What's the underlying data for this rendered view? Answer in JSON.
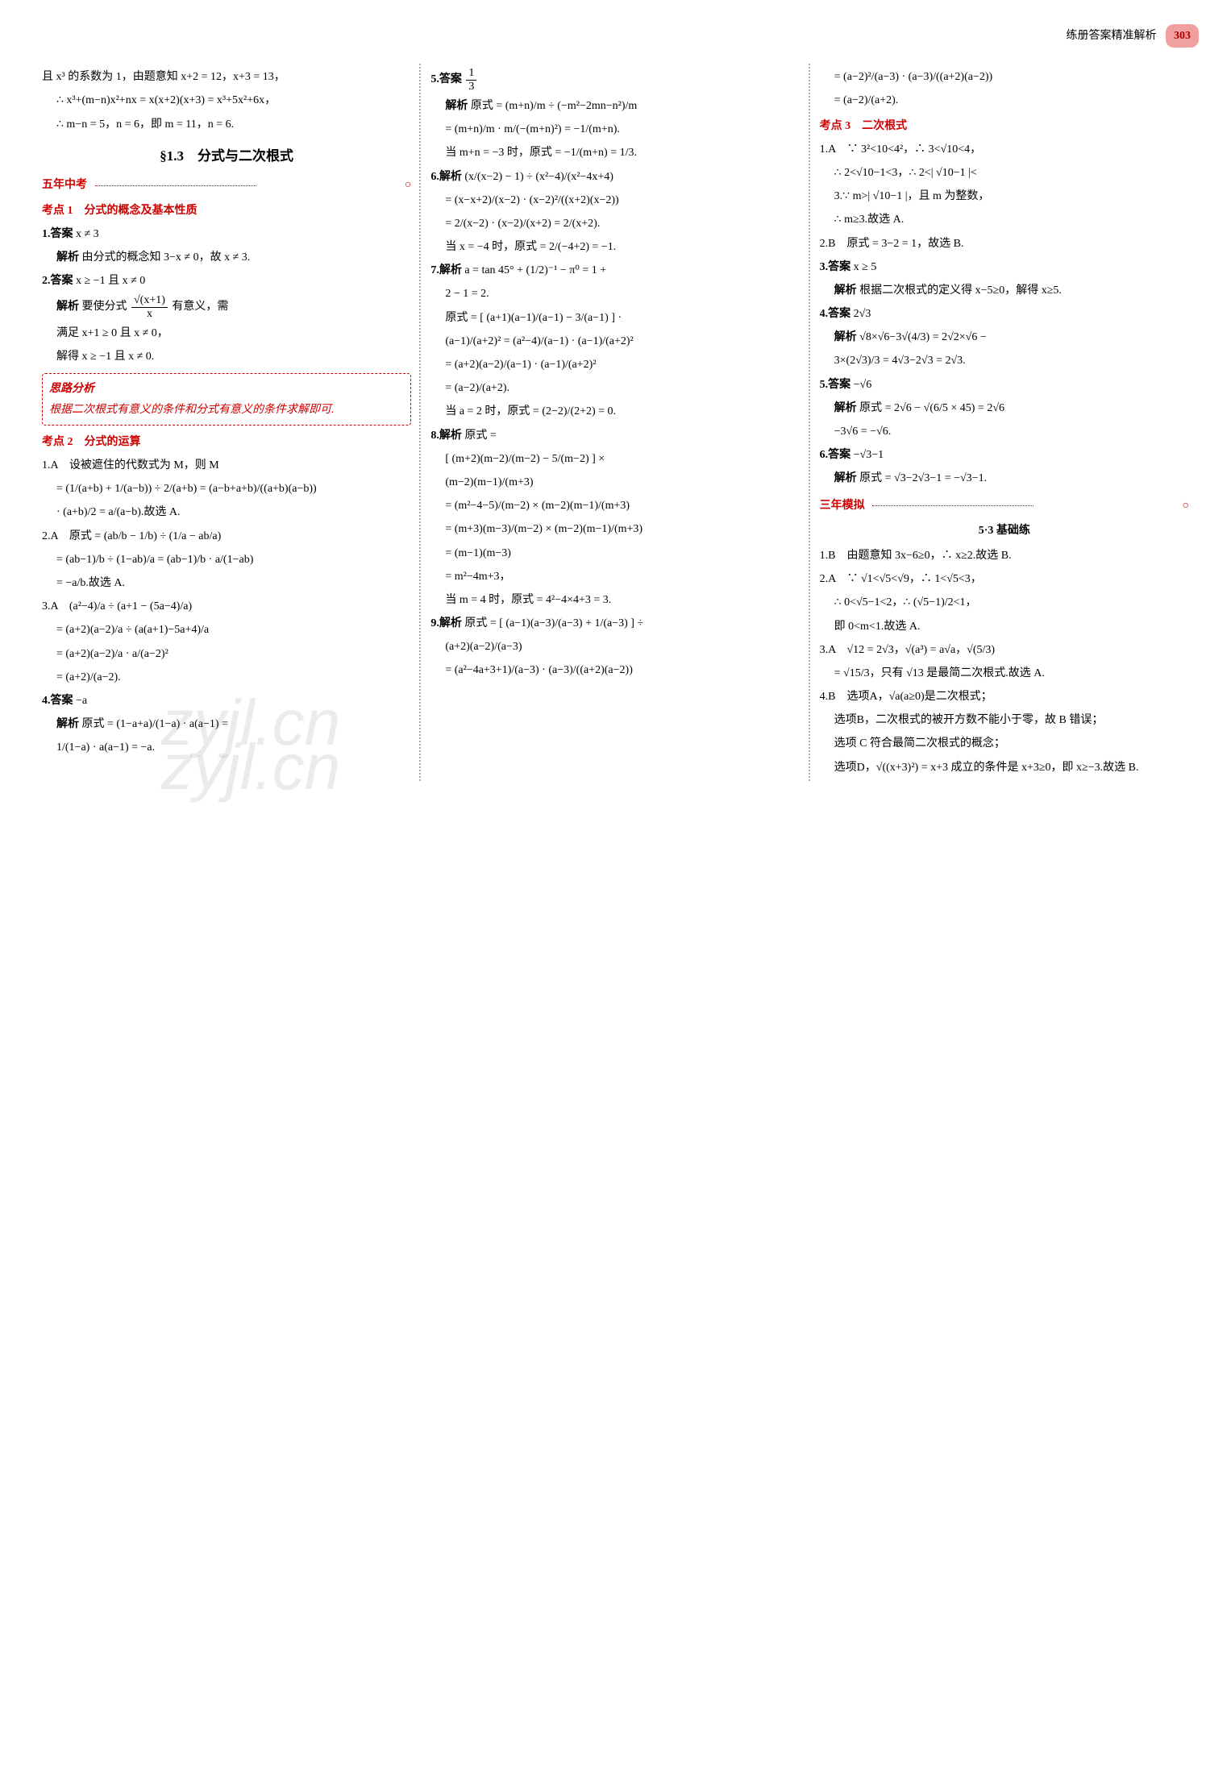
{
  "header": {
    "title": "练册答案精准解析",
    "page_number": "303"
  },
  "watermarks": [
    "zyjl.cn",
    "zyjl.cn"
  ],
  "col1": {
    "pre_lines": [
      "且 x³ 的系数为 1，由题意知 x+2 = 12，x+3 = 13，",
      "∴ x³+(m−n)x²+nx = x(x+2)(x+3) = x³+5x²+6x，",
      "∴ m−n = 5，n = 6，即 m = 11，n = 6."
    ],
    "section_title": "§1.3　分式与二次根式",
    "five_years": "五年中考",
    "kd1_title": "考点 1　分式的概念及基本性质",
    "q1_label": "1.答案",
    "q1_ans": "x ≠ 3",
    "q1_jiexi_label": "解析",
    "q1_jiexi": "由分式的概念知 3−x ≠ 0，故 x ≠ 3.",
    "q2_label": "2.答案",
    "q2_ans": "x ≥ −1 且 x ≠ 0",
    "q2_jiexi_label": "解析",
    "q2_txt1": "要使分式",
    "q2_fracnum": "√(x+1)",
    "q2_fracden": "x",
    "q2_txt2": "有意义，需",
    "q2_line2": "满足 x+1 ≥ 0 且 x ≠ 0，",
    "q2_line3": "解得 x ≥ −1 且 x ≠ 0.",
    "tip_title": "思路分析",
    "tip_body": "根据二次根式有意义的条件和分式有意义的条件求解即可.",
    "kd2_title": "考点 2　分式的运算",
    "kd2_1": "1.A　设被遮住的代数式为 M，则 M",
    "kd2_1b": "= (1/(a+b) + 1/(a−b)) ÷ 2/(a+b) = (a−b+a+b)/((a+b)(a−b))",
    "kd2_1c": "· (a+b)/2 = a/(a−b).故选 A.",
    "kd2_2": "2.A　原式 = (ab/b − 1/b) ÷ (1/a − ab/a)",
    "kd2_2b": "= (ab−1)/b ÷ (1−ab)/a = (ab−1)/b · a/(1−ab)",
    "kd2_2c": "= −a/b.故选 A.",
    "kd2_3": "3.A　(a²−4)/a ÷ (a+1 − (5a−4)/a)",
    "kd2_3b": "= (a+2)(a−2)/a ÷ (a(a+1)−5a+4)/a",
    "kd2_3c": "= (a+2)(a−2)/a · a/(a−2)²",
    "kd2_3d": "= (a+2)/(a−2).",
    "kd2_4_label": "4.答案",
    "kd2_4_ans": "−a",
    "kd2_4_jiexi_label": "解析",
    "kd2_4_jiexi": "原式 = (1−a+a)/(1−a) · a(a−1) =",
    "kd2_4_jiexi2": "1/(1−a) · a(a−1) = −a."
  },
  "col2": {
    "q5_label": "5.答案",
    "q5_ans_num": "1",
    "q5_ans_den": "3",
    "q5_jiexi_label": "解析",
    "q5_l1": "原式 = (m+n)/m ÷ (−m²−2mn−n²)/m",
    "q5_l2": "= (m+n)/m · m/(−(m+n)²) = −1/(m+n).",
    "q5_l3": "当 m+n = −3 时，原式 = −1/(m+n) = 1/3.",
    "q6_label": "6.解析",
    "q6_l1": "(x/(x−2) − 1) ÷ (x²−4)/(x²−4x+4)",
    "q6_l2": "= (x−x+2)/(x−2) · (x−2)²/((x+2)(x−2))",
    "q6_l3": "= 2/(x−2) · (x−2)/(x+2) = 2/(x+2).",
    "q6_l4": "当 x = −4 时，原式 = 2/(−4+2) = −1.",
    "q7_label": "7.解析",
    "q7_l1": "a = tan 45° + (1/2)⁻¹ − π⁰ = 1 +",
    "q7_l2": "2 − 1 = 2.",
    "q7_l3": "原式 = [ (a+1)(a−1)/(a−1) − 3/(a−1) ] ·",
    "q7_l4": "(a−1)/(a+2)² = (a²−4)/(a−1) · (a−1)/(a+2)²",
    "q7_l5": "= (a+2)(a−2)/(a−1) · (a−1)/(a+2)²",
    "q7_l6": "= (a−2)/(a+2).",
    "q7_l7": "当 a = 2 时，原式 = (2−2)/(2+2) = 0.",
    "q8_label": "8.解析",
    "q8_l1": "原式 =",
    "q8_l2": "[ (m+2)(m−2)/(m−2) − 5/(m−2) ] ×",
    "q8_l3": "(m−2)(m−1)/(m+3)",
    "q8_l4": "= (m²−4−5)/(m−2) × (m−2)(m−1)/(m+3)",
    "q8_l5": "= (m+3)(m−3)/(m−2) × (m−2)(m−1)/(m+3)",
    "q8_l6": "= (m−1)(m−3)",
    "q8_l7": "= m²−4m+3，",
    "q8_l8": "当 m = 4 时，原式 = 4²−4×4+3 = 3.",
    "q9_label": "9.解析",
    "q9_l1": "原式 = [ (a−1)(a−3)/(a−3) + 1/(a−3) ] ÷",
    "q9_l2": "(a+2)(a−2)/(a−3)",
    "q9_l3": "= (a²−4a+3+1)/(a−3) · (a−3)/((a+2)(a−2))"
  },
  "col3": {
    "cont_l1": "= (a−2)²/(a−3) · (a−3)/((a+2)(a−2))",
    "cont_l2": "= (a−2)/(a+2).",
    "kd3_title": "考点 3　二次根式",
    "q1": "1.A　∵ 3²<10<4²，∴ 3<√10<4，",
    "q1b": "∴ 2<√10−1<3，∴ 2<| √10−1 |<",
    "q1c": "3.∵ m>| √10−1 |，且 m 为整数，",
    "q1d": "∴ m≥3.故选 A.",
    "q2": "2.B　原式 = 3−2 = 1，故选 B.",
    "q3_label": "3.答案",
    "q3_ans": "x ≥ 5",
    "q3_jiexi_label": "解析",
    "q3_jiexi": "根据二次根式的定义得 x−5≥0，解得 x≥5.",
    "q4_label": "4.答案",
    "q4_ans": "2√3",
    "q4_jiexi_label": "解析",
    "q4_jiexi": "√8×√6−3√(4/3) = 2√2×√6 −",
    "q4_jiexi2": "3×(2√3)/3 = 4√3−2√3 = 2√3.",
    "q5_label": "5.答案",
    "q5_ans": "−√6",
    "q5_jiexi_label": "解析",
    "q5_jiexi": "原式 = 2√6 − √(6/5 × 45) = 2√6",
    "q5_jiexi2": "−3√6 = −√6.",
    "q6_label": "6.答案",
    "q6_ans": "−√3−1",
    "q6_jiexi_label": "解析",
    "q6_jiexi": "原式 = √3−2√3−1 = −√3−1.",
    "three_years": "三年模拟",
    "subhead": "5·3 基础练",
    "sq1": "1.B　由题意知 3x−6≥0，∴ x≥2.故选 B.",
    "sq2": "2.A　∵ √1<√5<√9，∴ 1<√5<3，",
    "sq2b": "∴ 0<√5−1<2，∴ (√5−1)/2<1，",
    "sq2c": "即 0<m<1.故选 A.",
    "sq3": "3.A　√12 = 2√3，√(a³) = a√a，√(5/3)",
    "sq3b": "= √15/3，只有 √13 是最简二次根式.故选 A.",
    "sq4": "4.B　选项A，√a(a≥0)是二次根式；",
    "sq4b": "选项B，二次根式的被开方数不能小于零，故 B 错误；",
    "sq4c": "选项 C 符合最简二次根式的概念；",
    "sq4d": "选项D，√((x+3)²) = x+3 成立的条件是 x+3≥0，即 x≥−3.故选 B."
  }
}
